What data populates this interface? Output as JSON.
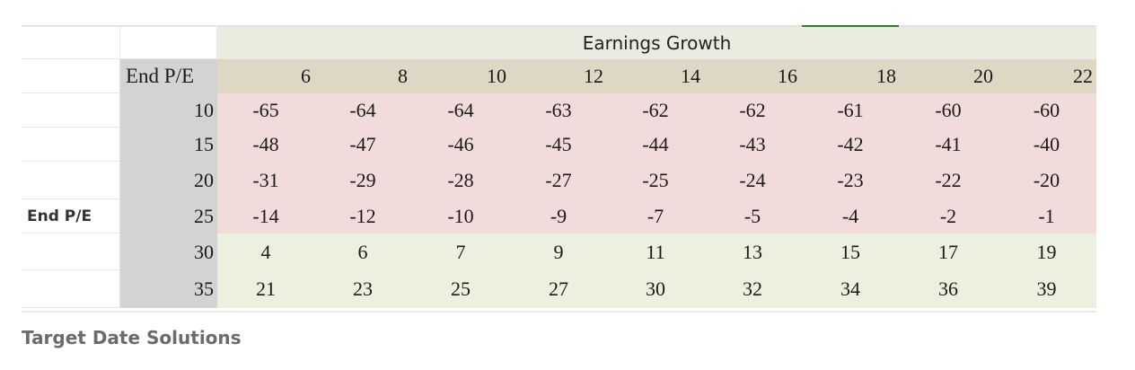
{
  "table": {
    "title": "Earnings Growth",
    "side_label": "End P/E",
    "corner_label": "End P/E",
    "columns": [
      "6",
      "8",
      "10",
      "12",
      "14",
      "16",
      "18",
      "20",
      "22"
    ],
    "rows": [
      {
        "label": "10",
        "values": [
          "-65",
          "-64",
          "-64",
          "-63",
          "-62",
          "-62",
          "-61",
          "-60",
          "-60"
        ]
      },
      {
        "label": "15",
        "values": [
          "-48",
          "-47",
          "-46",
          "-45",
          "-44",
          "-43",
          "-42",
          "-41",
          "-40"
        ]
      },
      {
        "label": "20",
        "values": [
          "-31",
          "-29",
          "-28",
          "-27",
          "-25",
          "-24",
          "-23",
          "-22",
          "-20"
        ]
      },
      {
        "label": "25",
        "values": [
          "-14",
          "-12",
          "-10",
          "-9",
          "-7",
          "-5",
          "-4",
          "-2",
          "-1"
        ]
      },
      {
        "label": "30",
        "values": [
          "4",
          "6",
          "7",
          "9",
          "11",
          "13",
          "15",
          "17",
          "19"
        ]
      },
      {
        "label": "35",
        "values": [
          "21",
          "23",
          "25",
          "27",
          "30",
          "32",
          "34",
          "36",
          "39"
        ]
      }
    ]
  },
  "caption": "Target Date Solutions",
  "colors": {
    "negative_fill": "#f2dcdb",
    "positive_fill": "#ebf1de",
    "header_fill": "#ddd7c4",
    "row_header_fill": "#d3d3d3"
  }
}
